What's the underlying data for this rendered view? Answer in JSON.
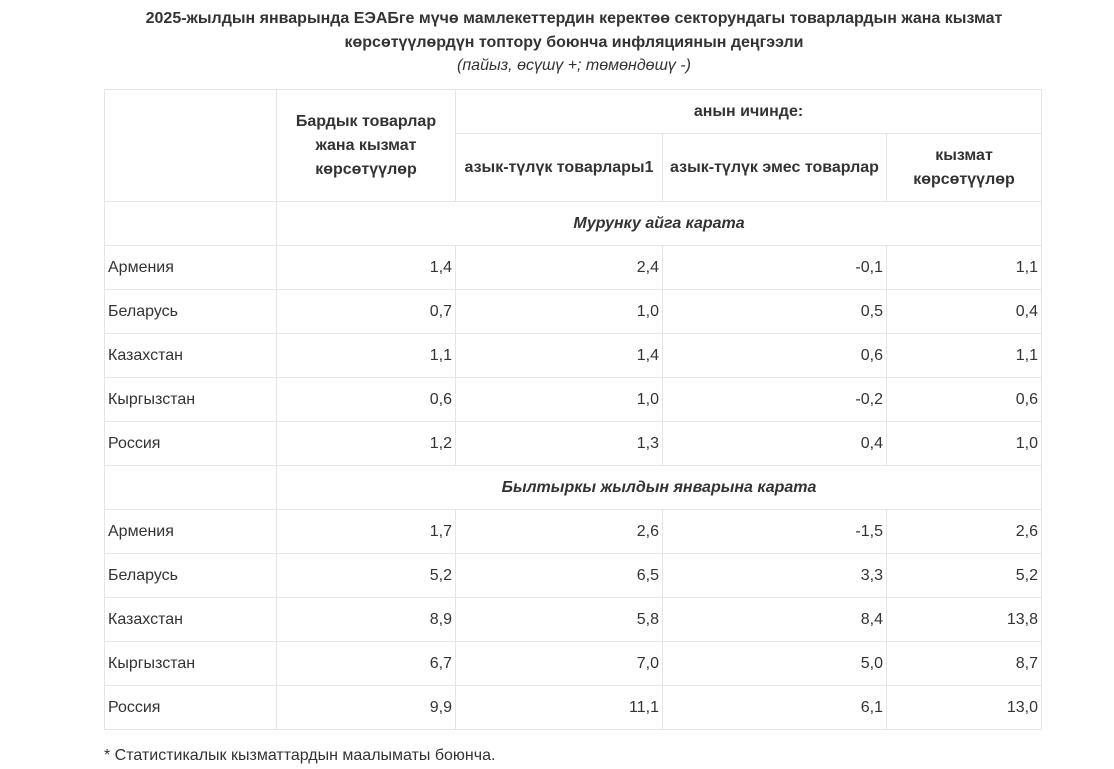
{
  "title_line1": "2025-жылдын январында ЕЭАБге мүчө мамлекеттердин керектөө секторундагы товарлардын жана кызмат",
  "title_line2": "көрсөтүүлөрдүн топтору боюнча инфляциянын деңгээли",
  "subtitle": "(пайыз, өсүшү +; төмөндөшү -)",
  "header": {
    "all_goods": "Бардык товарлар жана кызмат көрсөтүүлөр",
    "of_which": "анын ичинде:",
    "food": "азык-түлүк товарлары1",
    "nonfood": "азык-түлүк эмес товарлар",
    "services": "кызмат көрсөтүүлөр"
  },
  "sections": [
    {
      "title": "Мурунку айга карата",
      "rows": [
        {
          "country": "Армения",
          "all": "1,4",
          "food": "2,4",
          "nonfood": "-0,1",
          "services": "1,1"
        },
        {
          "country": "Беларусь",
          "all": "0,7",
          "food": "1,0",
          "nonfood": "0,5",
          "services": "0,4"
        },
        {
          "country": "Казахстан",
          "all": "1,1",
          "food": "1,4",
          "nonfood": "0,6",
          "services": "1,1"
        },
        {
          "country": "Кыргызстан",
          "all": "0,6",
          "food": "1,0",
          "nonfood": "-0,2",
          "services": "0,6"
        },
        {
          "country": "Россия",
          "all": "1,2",
          "food": "1,3",
          "nonfood": "0,4",
          "services": "1,0"
        }
      ]
    },
    {
      "title": "Былтыркы жылдын январына карата",
      "rows": [
        {
          "country": "Армения",
          "all": "1,7",
          "food": "2,6",
          "nonfood": "-1,5",
          "services": "2,6"
        },
        {
          "country": "Беларусь",
          "all": "5,2",
          "food": "6,5",
          "nonfood": "3,3",
          "services": "5,2"
        },
        {
          "country": "Казахстан",
          "all": "8,9",
          "food": "5,8",
          "nonfood": "8,4",
          "services": "13,8"
        },
        {
          "country": "Кыргызстан",
          "all": "6,7",
          "food": "7,0",
          "nonfood": "5,0",
          "services": "8,7"
        },
        {
          "country": "Россия",
          "all": "9,9",
          "food": "11,1",
          "nonfood": "6,1",
          "services": "13,0"
        }
      ]
    }
  ],
  "footnote": "* Статистикалык кызматтардын маалыматы боюнча."
}
